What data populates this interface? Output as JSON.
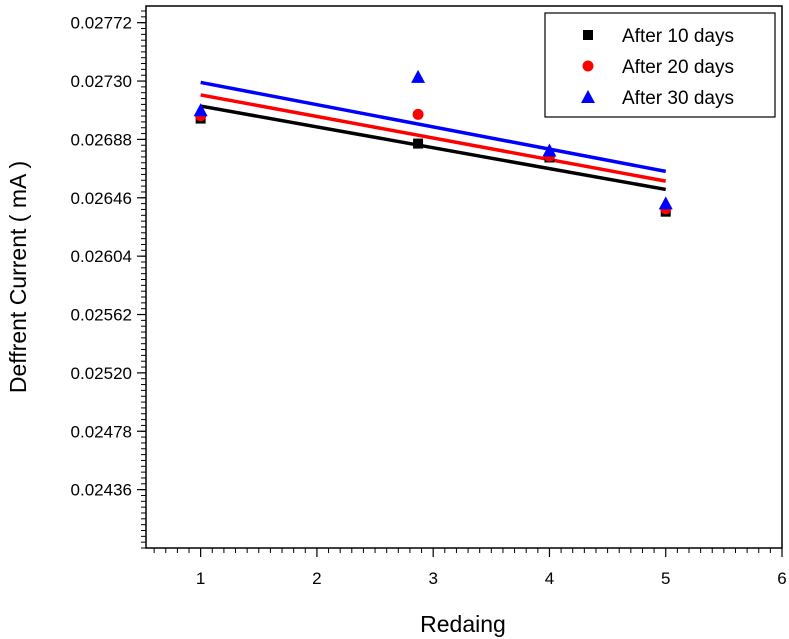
{
  "chart_data": {
    "type": "scatter",
    "xlabel": "Redaing",
    "ylabel": "Deffrent Current ( mA )",
    "xlim": [
      0.53,
      6
    ],
    "ylim": [
      0.02394,
      0.02784
    ],
    "xticks": [
      1,
      2,
      3,
      4,
      5,
      6
    ],
    "yticks": [
      0.02436,
      0.02478,
      0.0252,
      0.02562,
      0.02604,
      0.02646,
      0.02688,
      0.0273,
      0.02772
    ],
    "ytick_labels": [
      "0.02436",
      "0.02478",
      "0.02520",
      "0.02562",
      "0.02604",
      "0.02646",
      "0.02688",
      "0.02730",
      "0.02772"
    ],
    "xtick_labels": [
      "1",
      "2",
      "3",
      "4",
      "5",
      "6"
    ],
    "legend_position": "top-right",
    "series": [
      {
        "name": "After 10 days",
        "marker": "square",
        "color": "#000000",
        "x": [
          1,
          2.87,
          4,
          5
        ],
        "y": [
          0.02703,
          0.02685,
          0.02675,
          0.02636
        ],
        "fit_line": {
          "x": [
            1,
            5
          ],
          "y": [
            0.02712,
            0.02652
          ]
        }
      },
      {
        "name": "After 20 days",
        "marker": "circle",
        "color": "#ff0000",
        "x": [
          1,
          2.87,
          4,
          5
        ],
        "y": [
          0.02705,
          0.02706,
          0.02676,
          0.02638
        ],
        "fit_line": {
          "x": [
            1,
            5
          ],
          "y": [
            0.0272,
            0.02658
          ]
        }
      },
      {
        "name": "After 30 days",
        "marker": "triangle",
        "color": "#0000ff",
        "x": [
          1,
          2.87,
          4,
          5
        ],
        "y": [
          0.02709,
          0.02733,
          0.0268,
          0.02642
        ],
        "fit_line": {
          "x": [
            1,
            5
          ],
          "y": [
            0.02729,
            0.02665
          ]
        }
      }
    ]
  }
}
